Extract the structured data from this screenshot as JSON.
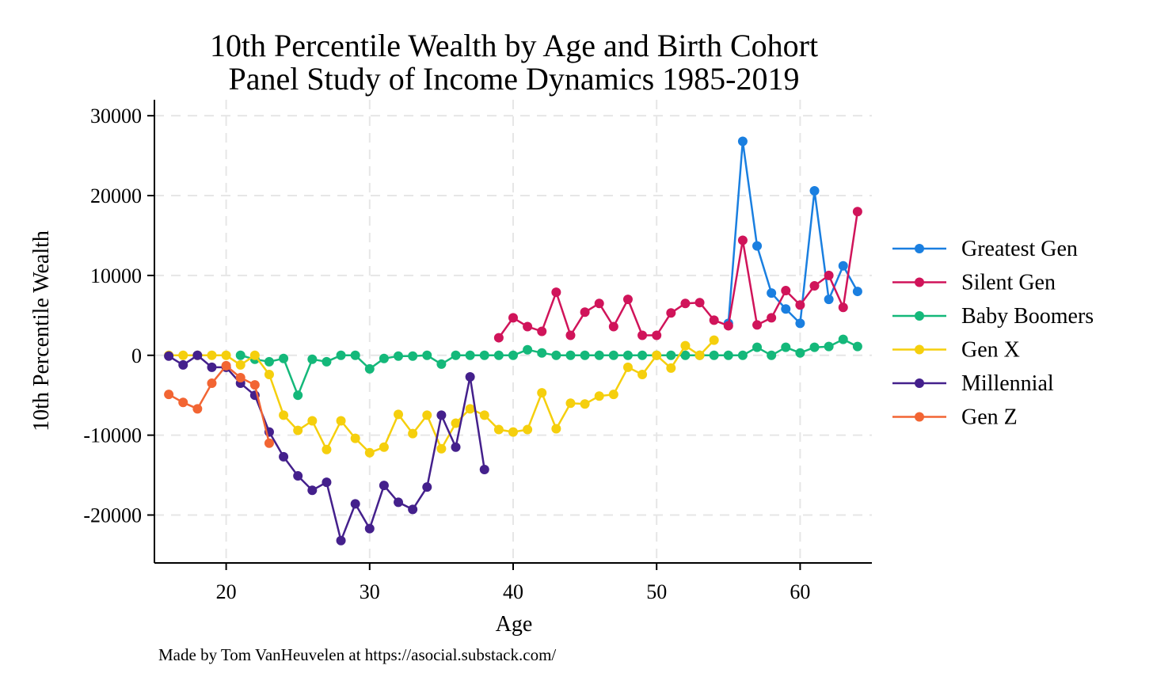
{
  "chart_data": {
    "type": "line",
    "title": [
      "10th Percentile Wealth by Age and Birth Cohort",
      "Panel Study of Income Dynamics 1985-2019"
    ],
    "xlabel": "Age",
    "ylabel": "10th Percentile Wealth",
    "caption": "Made by Tom VanHeuvelen at https://asocial.substack.com/",
    "xlim": [
      15,
      65
    ],
    "ylim": [
      -26000,
      32000
    ],
    "xticks": [
      20,
      30,
      40,
      50,
      60
    ],
    "yticks": [
      30000,
      20000,
      10000,
      0,
      -10000,
      -20000
    ],
    "xtick_labels": [
      "20",
      "30",
      "40",
      "50",
      "60"
    ],
    "ytick_labels": [
      "30000",
      "20000",
      "10000",
      "0",
      "-10000",
      "-20000"
    ],
    "grid": true,
    "legend_position": "right",
    "series": [
      {
        "name": "Greatest Gen",
        "color": "#1a7fe0",
        "x": [
          55,
          56,
          57,
          58,
          59,
          60,
          61,
          62,
          63,
          64
        ],
        "y": [
          4000,
          26800,
          13700,
          7800,
          5800,
          4000,
          20600,
          7000,
          11200,
          8000
        ]
      },
      {
        "name": "Silent Gen",
        "color": "#d0145a",
        "x": [
          39,
          40,
          41,
          42,
          43,
          44,
          45,
          46,
          47,
          48,
          49,
          50,
          51,
          52,
          53,
          54,
          55,
          56,
          57,
          58,
          59,
          60,
          61,
          62,
          63,
          64
        ],
        "y": [
          2200,
          4700,
          3600,
          3000,
          7900,
          2500,
          5400,
          6500,
          3600,
          7000,
          2500,
          2500,
          5300,
          6500,
          6600,
          4400,
          3700,
          14400,
          3800,
          4700,
          8100,
          6300,
          8700,
          10000,
          6000,
          18000
        ]
      },
      {
        "name": "Baby Boomers",
        "color": "#14b87a",
        "x": [
          21,
          22,
          23,
          24,
          25,
          26,
          27,
          28,
          29,
          30,
          31,
          32,
          33,
          34,
          35,
          36,
          37,
          38,
          39,
          40,
          41,
          42,
          43,
          44,
          45,
          46,
          47,
          48,
          49,
          50,
          51,
          52,
          53,
          54,
          55,
          56,
          57,
          58,
          59,
          60,
          61,
          62,
          63,
          64
        ],
        "y": [
          0,
          -500,
          -800,
          -400,
          -5000,
          -500,
          -800,
          0,
          0,
          -1700,
          -400,
          -100,
          -100,
          0,
          -1100,
          0,
          0,
          0,
          0,
          0,
          700,
          300,
          0,
          0,
          0,
          0,
          0,
          0,
          0,
          0,
          0,
          0,
          0,
          0,
          0,
          0,
          1000,
          0,
          1000,
          300,
          1000,
          1100,
          2000,
          1100
        ]
      },
      {
        "name": "Gen X",
        "color": "#f5cf0d",
        "x": [
          16,
          17,
          18,
          19,
          20,
          21,
          22,
          23,
          24,
          25,
          26,
          27,
          28,
          29,
          30,
          31,
          32,
          33,
          34,
          35,
          36,
          37,
          38,
          39,
          40,
          41,
          42,
          43,
          44,
          45,
          46,
          47,
          48,
          49,
          50,
          51,
          52,
          53,
          54
        ],
        "y": [
          0,
          0,
          0,
          0,
          0,
          -1200,
          0,
          -2400,
          -7500,
          -9400,
          -8200,
          -11800,
          -8200,
          -10400,
          -12200,
          -11500,
          -7400,
          -9800,
          -7500,
          -11700,
          -8500,
          -6700,
          -7500,
          -9300,
          -9600,
          -9300,
          -4700,
          -9200,
          -6000,
          -6100,
          -5100,
          -4900,
          -1500,
          -2400,
          0,
          -1600,
          1200,
          0,
          1900
        ]
      },
      {
        "name": "Millennial",
        "color": "#44208c",
        "x": [
          16,
          17,
          18,
          19,
          20,
          21,
          22,
          23,
          24,
          25,
          26,
          27,
          28,
          29,
          30,
          31,
          32,
          33,
          34,
          35,
          36,
          37,
          38
        ],
        "y": [
          -100,
          -1200,
          0,
          -1500,
          -1500,
          -3500,
          -5000,
          -9600,
          -12700,
          -15100,
          -16900,
          -15900,
          -23200,
          -18600,
          -21700,
          -16300,
          -18400,
          -19300,
          -16500,
          -7500,
          -11500,
          -2700,
          -14300
        ]
      },
      {
        "name": "Gen Z",
        "color": "#f26533",
        "x": [
          16,
          17,
          18,
          19,
          20,
          21,
          22,
          23
        ],
        "y": [
          -4900,
          -5900,
          -6700,
          -3500,
          -1300,
          -2800,
          -3700,
          -11000
        ]
      }
    ]
  }
}
